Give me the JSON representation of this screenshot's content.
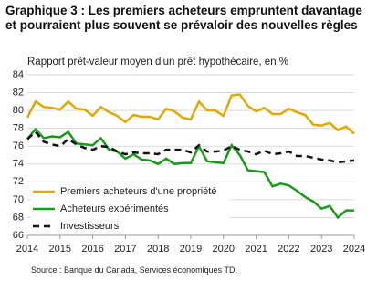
{
  "chart_data": {
    "type": "line",
    "title": "Graphique 3 : Les premiers acheteurs empruntent davantage et pourraient plus souvent  se prévaloir des nouvelles règles",
    "subtitle": "Rapport prêt-valeur moyen d'un prêt hypothécaire, en %",
    "source": "Source : Banque du Canada, Services économiques  TD.",
    "x": [
      2014,
      2014.25,
      2014.5,
      2014.75,
      2015,
      2015.25,
      2015.5,
      2015.75,
      2016,
      2016.25,
      2016.5,
      2016.75,
      2017,
      2017.25,
      2017.5,
      2017.75,
      2018,
      2018.25,
      2018.5,
      2018.75,
      2019,
      2019.25,
      2019.5,
      2019.75,
      2020,
      2020.25,
      2020.5,
      2020.75,
      2021,
      2021.25,
      2021.5,
      2021.75,
      2022,
      2022.25,
      2022.5,
      2022.75,
      2023,
      2023.25,
      2023.5,
      2023.75,
      2024
    ],
    "series": [
      {
        "name": "Premiers acheteurs d'une propriété",
        "color": "#e0a800",
        "dash": false,
        "values": [
          79.2,
          81,
          80.4,
          80.3,
          80.1,
          81,
          80.2,
          80.1,
          79.4,
          80.4,
          79.8,
          79.4,
          78.7,
          79.5,
          79.3,
          79.3,
          79.0,
          80.2,
          79.9,
          79.2,
          79.0,
          81,
          80,
          80,
          79.4,
          81.7,
          81.8,
          80.5,
          79.9,
          80.3,
          79.6,
          79.6,
          80.2,
          79.8,
          79.5,
          78.4,
          78.3,
          78.6,
          77.8,
          78.2,
          77.4
        ]
      },
      {
        "name": "Acheteurs expérimentés",
        "color": "#1a9a1a",
        "dash": false,
        "values": [
          76.8,
          77.9,
          76.9,
          77.1,
          77,
          77.6,
          76.3,
          76.2,
          76.1,
          76.9,
          75.6,
          75.4,
          74.6,
          75.1,
          74.5,
          74.4,
          74.0,
          74.6,
          74.0,
          74.1,
          74.1,
          76,
          74.3,
          74.2,
          74.1,
          76.1,
          75,
          73.3,
          73.2,
          73.1,
          71.5,
          71.8,
          71.6,
          71.0,
          70.3,
          69.8,
          69,
          69.3,
          68,
          68.8,
          68.8
        ]
      },
      {
        "name": "Investisseurs",
        "color": "#111111",
        "dash": true,
        "values": [
          76.8,
          77.6,
          76.5,
          76.2,
          76.0,
          76.8,
          76.2,
          75.8,
          75.6,
          76.0,
          75.9,
          75.4,
          75.1,
          75.3,
          75.2,
          75.2,
          75.1,
          75.6,
          75.6,
          75.6,
          75.3,
          76.1,
          75.4,
          75.4,
          75.5,
          76.0,
          75.6,
          75.4,
          75.1,
          75.5,
          75.1,
          75.2,
          75.4,
          74.9,
          74.9,
          74.7,
          74.5,
          74.4,
          74.2,
          74.3,
          74.4
        ]
      }
    ],
    "xlim": [
      2014,
      2024
    ],
    "xticks": [
      2014,
      2015,
      2016,
      2017,
      2018,
      2019,
      2020,
      2021,
      2022,
      2023,
      2024
    ],
    "ylim": [
      66,
      84
    ],
    "yticks": [
      66,
      68,
      70,
      72,
      74,
      76,
      78,
      80,
      82,
      84
    ],
    "grid": true,
    "legend": "lower-left"
  }
}
